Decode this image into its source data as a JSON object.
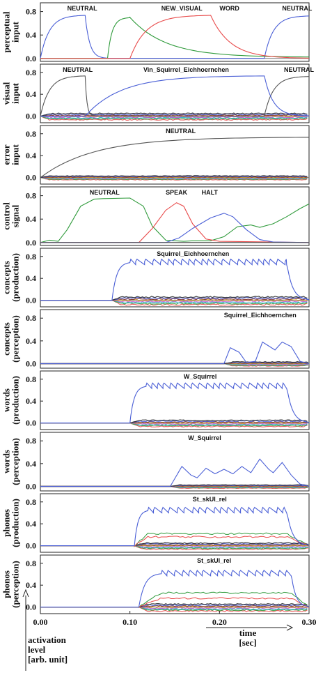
{
  "chart_data": [
    {
      "type": "line",
      "ylabel": [
        "perceptual",
        "input"
      ],
      "ylim": [
        -0.05,
        0.95
      ],
      "yticks": [
        0.0,
        0.4,
        0.8
      ],
      "annotations": [
        {
          "text": "NEUTRAL",
          "x": 0.03
        },
        {
          "text": "NEW_VISUAL",
          "x": 0.135
        },
        {
          "text": "WORD",
          "x": 0.2
        },
        {
          "text": "NEUTRAL",
          "x": 0.27
        }
      ],
      "series": [
        {
          "color": "#4a5fd6",
          "segments": [
            {
              "type": "rise",
              "start": 0.0,
              "end": 0.05,
              "base": 0.0,
              "peak": 0.74
            },
            {
              "type": "decay",
              "start": 0.05,
              "end": 0.075,
              "base": 0.0,
              "from": 0.74
            },
            {
              "type": "rise",
              "start": 0.25,
              "end": 0.3,
              "base": 0.0,
              "peak": 0.73
            }
          ]
        },
        {
          "color": "#2e9a3a",
          "segments": [
            {
              "type": "rise",
              "start": 0.075,
              "end": 0.1,
              "base": 0.0,
              "peak": 0.7
            },
            {
              "type": "decay",
              "start": 0.1,
              "end": 0.3,
              "base": 0.02,
              "from": 0.7
            }
          ]
        },
        {
          "color": "#e84a4a",
          "segments": [
            {
              "type": "rise",
              "start": 0.1,
              "end": 0.19,
              "base": 0.0,
              "peak": 0.74
            },
            {
              "type": "decay",
              "start": 0.19,
              "end": 0.3,
              "base": 0.0,
              "from": 0.74
            }
          ]
        }
      ]
    },
    {
      "type": "line",
      "ylabel": [
        "visual",
        "input"
      ],
      "ylim": [
        -0.12,
        0.95
      ],
      "yticks": [
        0.0,
        0.4,
        0.8
      ],
      "annotations": [
        {
          "text": "NEUTRAL",
          "x": 0.025
        },
        {
          "text": "Vin_Squirrel_Eichhoernchen",
          "x": 0.115
        },
        {
          "text": "NEUTRAL",
          "x": 0.272
        }
      ],
      "noise_band": {
        "start": 0.0,
        "end": 0.3,
        "amp": 0.08
      },
      "series": [
        {
          "color": "#555555",
          "segments": [
            {
              "type": "rise",
              "start": 0.0,
              "end": 0.05,
              "base": 0.0,
              "peak": 0.74
            },
            {
              "type": "decay",
              "start": 0.05,
              "end": 0.06,
              "base": 0.0,
              "from": 0.74
            },
            {
              "type": "rise",
              "start": 0.25,
              "end": 0.3,
              "base": 0.0,
              "peak": 0.73
            }
          ]
        },
        {
          "color": "#4a5fd6",
          "segments": [
            {
              "type": "rise",
              "start": 0.05,
              "end": 0.25,
              "base": 0.0,
              "peak": 0.74
            },
            {
              "type": "decay",
              "start": 0.25,
              "end": 0.3,
              "base": 0.0,
              "from": 0.74
            }
          ]
        }
      ]
    },
    {
      "type": "line",
      "ylabel": [
        "error",
        "input"
      ],
      "ylim": [
        -0.12,
        0.95
      ],
      "yticks": [
        0.0,
        0.4,
        0.8
      ],
      "annotations": [
        {
          "text": "NEUTRAL",
          "x": 0.14
        }
      ],
      "noise_band": {
        "start": 0.0,
        "end": 0.3,
        "amp": 0.05
      },
      "series": [
        {
          "color": "#555555",
          "segments": [
            {
              "type": "rise",
              "start": 0.0,
              "end": 0.3,
              "base": 0.0,
              "peak": 0.74
            }
          ]
        }
      ]
    },
    {
      "type": "line",
      "ylabel": [
        "control",
        "signal"
      ],
      "ylim": [
        -0.05,
        0.95
      ],
      "yticks": [
        0.0,
        0.4,
        0.8
      ],
      "annotations": [
        {
          "text": "NEUTRAL",
          "x": 0.055
        },
        {
          "text": "SPEAK",
          "x": 0.14
        },
        {
          "text": "HALT",
          "x": 0.18
        }
      ],
      "series": [
        {
          "color": "#2e9a3a",
          "points": [
            [
              0.0,
              0.0
            ],
            [
              0.01,
              0.04
            ],
            [
              0.02,
              0.02
            ],
            [
              0.03,
              0.22
            ],
            [
              0.045,
              0.62
            ],
            [
              0.06,
              0.74
            ],
            [
              0.07,
              0.75
            ],
            [
              0.1,
              0.76
            ],
            [
              0.115,
              0.62
            ],
            [
              0.125,
              0.28
            ],
            [
              0.14,
              0.04
            ],
            [
              0.16,
              0.02
            ],
            [
              0.17,
              0.03
            ],
            [
              0.19,
              0.03
            ],
            [
              0.205,
              0.1
            ],
            [
              0.22,
              0.27
            ],
            [
              0.235,
              0.3
            ],
            [
              0.245,
              0.26
            ],
            [
              0.26,
              0.32
            ],
            [
              0.275,
              0.44
            ],
            [
              0.29,
              0.58
            ],
            [
              0.3,
              0.66
            ]
          ]
        },
        {
          "color": "#e84a4a",
          "points": [
            [
              0.0,
              0.0
            ],
            [
              0.11,
              0.0
            ],
            [
              0.125,
              0.24
            ],
            [
              0.14,
              0.55
            ],
            [
              0.152,
              0.68
            ],
            [
              0.16,
              0.62
            ],
            [
              0.17,
              0.32
            ],
            [
              0.185,
              0.06
            ],
            [
              0.2,
              0.02
            ],
            [
              0.3,
              0.0
            ]
          ]
        },
        {
          "color": "#4a5fd6",
          "points": [
            [
              0.0,
              0.0
            ],
            [
              0.14,
              0.0
            ],
            [
              0.155,
              0.08
            ],
            [
              0.17,
              0.24
            ],
            [
              0.19,
              0.42
            ],
            [
              0.205,
              0.5
            ],
            [
              0.215,
              0.44
            ],
            [
              0.23,
              0.22
            ],
            [
              0.245,
              0.05
            ],
            [
              0.26,
              0.01
            ],
            [
              0.3,
              0.0
            ]
          ]
        },
        {
          "color": "#555555",
          "points": [
            [
              0.0,
              0.0
            ],
            [
              0.3,
              0.0
            ]
          ]
        }
      ]
    },
    {
      "type": "line",
      "ylabel": [
        "concepts",
        "(production)"
      ],
      "ylim": [
        -0.12,
        0.95
      ],
      "yticks": [
        0.0,
        0.4,
        0.8
      ],
      "annotations": [
        {
          "text": "Squirrel_Eichhoernchen",
          "x": 0.13
        }
      ],
      "noise_band": {
        "start": 0.08,
        "end": 0.3,
        "amp": 0.1
      },
      "series": [
        {
          "color": "#4a5fd6",
          "onset": 0.08,
          "rise_end": 0.1,
          "plateau": 0.7,
          "offset": 0.275,
          "end": 0.3,
          "scallop": true
        }
      ]
    },
    {
      "type": "line",
      "ylabel": [
        "concepts",
        "(perception)"
      ],
      "ylim": [
        -0.08,
        0.95
      ],
      "yticks": [
        0.0,
        0.4,
        0.8
      ],
      "annotations": [
        {
          "text": "Squirrel_Eichhoernchen",
          "x": 0.205
        }
      ],
      "noise_band": {
        "start": 0.205,
        "end": 0.3,
        "amp": 0.05
      },
      "series": [
        {
          "color": "#4a5fd6",
          "points": [
            [
              0.0,
              0.0
            ],
            [
              0.205,
              0.0
            ],
            [
              0.212,
              0.28
            ],
            [
              0.222,
              0.2
            ],
            [
              0.23,
              0.02
            ],
            [
              0.24,
              0.04
            ],
            [
              0.248,
              0.38
            ],
            [
              0.256,
              0.3
            ],
            [
              0.262,
              0.24
            ],
            [
              0.27,
              0.38
            ],
            [
              0.28,
              0.3
            ],
            [
              0.29,
              0.04
            ],
            [
              0.3,
              0.0
            ]
          ]
        }
      ]
    },
    {
      "type": "line",
      "ylabel": [
        "words",
        "(production)"
      ],
      "ylim": [
        -0.12,
        0.95
      ],
      "yticks": [
        0.0,
        0.4,
        0.8
      ],
      "annotations": [
        {
          "text": "W_Squirrel",
          "x": 0.16
        }
      ],
      "noise_band": {
        "start": 0.1,
        "end": 0.3,
        "amp": 0.08
      },
      "series": [
        {
          "color": "#4a5fd6",
          "onset": 0.1,
          "rise_end": 0.118,
          "plateau": 0.68,
          "offset": 0.275,
          "end": 0.3,
          "scallop": true
        }
      ]
    },
    {
      "type": "line",
      "ylabel": [
        "words",
        "(perception)"
      ],
      "ylim": [
        -0.08,
        0.95
      ],
      "yticks": [
        0.0,
        0.4,
        0.8
      ],
      "annotations": [
        {
          "text": "W_Squirrel",
          "x": 0.165
        }
      ],
      "noise_band": {
        "start": 0.145,
        "end": 0.3,
        "amp": 0.04
      },
      "series": [
        {
          "color": "#4a5fd6",
          "points": [
            [
              0.0,
              0.0
            ],
            [
              0.145,
              0.0
            ],
            [
              0.158,
              0.35
            ],
            [
              0.168,
              0.2
            ],
            [
              0.175,
              0.15
            ],
            [
              0.185,
              0.32
            ],
            [
              0.195,
              0.22
            ],
            [
              0.205,
              0.3
            ],
            [
              0.215,
              0.22
            ],
            [
              0.225,
              0.35
            ],
            [
              0.235,
              0.24
            ],
            [
              0.245,
              0.48
            ],
            [
              0.255,
              0.3
            ],
            [
              0.26,
              0.24
            ],
            [
              0.27,
              0.42
            ],
            [
              0.28,
              0.2
            ],
            [
              0.29,
              0.04
            ],
            [
              0.3,
              0.0
            ]
          ]
        }
      ]
    },
    {
      "type": "line",
      "ylabel": [
        "phonos",
        "(production)"
      ],
      "ylim": [
        -0.12,
        0.95
      ],
      "yticks": [
        0.0,
        0.4,
        0.8
      ],
      "annotations": [
        {
          "text": "St_skUI_rel",
          "x": 0.17
        }
      ],
      "noise_band": {
        "start": 0.105,
        "end": 0.3,
        "amp": 0.08
      },
      "extra": [
        {
          "color": "#2e9a3a",
          "level": 0.22
        },
        {
          "color": "#e84a4a",
          "level": 0.16
        }
      ],
      "series": [
        {
          "color": "#4a5fd6",
          "onset": 0.105,
          "rise_end": 0.12,
          "plateau": 0.65,
          "offset": 0.275,
          "end": 0.3,
          "scallop": true
        }
      ]
    },
    {
      "type": "line",
      "ylabel": [
        "phonos",
        "(perception)"
      ],
      "ylim": [
        -0.12,
        0.95
      ],
      "yticks": [
        0.0,
        0.4,
        0.8
      ],
      "annotations": [
        {
          "text": "St_skUI_rel",
          "x": 0.175
        }
      ],
      "noise_band": {
        "start": 0.11,
        "end": 0.3,
        "amp": 0.09
      },
      "extra": [
        {
          "color": "#2e9a3a",
          "level": 0.26
        },
        {
          "color": "#e84a4a",
          "level": 0.16
        }
      ],
      "series": [
        {
          "color": "#4a5fd6",
          "onset": 0.11,
          "rise_end": 0.135,
          "plateau": 0.62,
          "offset": 0.28,
          "end": 0.3,
          "scallop": true
        }
      ]
    }
  ],
  "xaxis": {
    "ticks": [
      0.0,
      0.1,
      0.2,
      0.3
    ],
    "tick_labels": [
      "0.00",
      "0.10",
      "0.20",
      "0.30"
    ],
    "xlim": [
      0.0,
      0.3
    ],
    "label_lines": [
      "time",
      "[sec]"
    ]
  },
  "yaxis_label_lines": [
    "activation",
    "level",
    "[arb. unit]"
  ],
  "colors": {
    "blue": "#4a5fd6",
    "green": "#2e9a3a",
    "red": "#e84a4a",
    "gray": "#555555"
  }
}
